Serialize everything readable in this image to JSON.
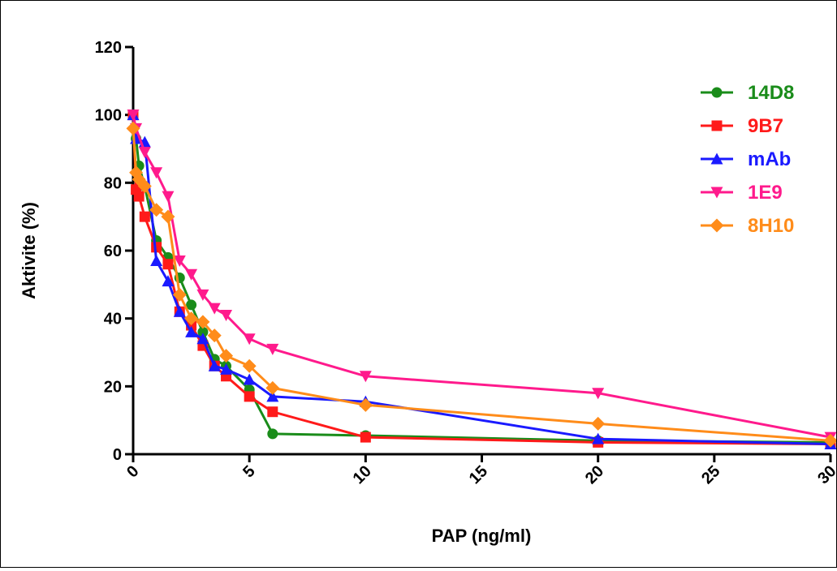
{
  "chart_data": {
    "type": "line",
    "title": "",
    "xlabel": "PAP (ng/ml)",
    "ylabel": "Aktivite (%)",
    "xlim": [
      0,
      30
    ],
    "ylim": [
      0,
      120
    ],
    "xticks": [
      "0",
      "5",
      "10",
      "15",
      "20",
      "25",
      "30"
    ],
    "yticks": [
      "0",
      "20",
      "40",
      "60",
      "80",
      "100",
      "120"
    ],
    "grid": false,
    "legend_position": "top-right",
    "series": [
      {
        "name": "14D8",
        "color": "#1a8c1a",
        "marker": "circle",
        "points": [
          [
            0,
            100
          ],
          [
            0.125,
            93
          ],
          [
            0.25,
            85
          ],
          [
            0.5,
            79
          ],
          [
            1,
            63
          ],
          [
            1.5,
            58
          ],
          [
            2,
            52
          ],
          [
            2.5,
            44
          ],
          [
            3,
            36
          ],
          [
            3.5,
            28
          ],
          [
            4,
            26
          ],
          [
            5,
            19
          ],
          [
            6,
            6
          ],
          [
            10,
            5.5
          ],
          [
            20,
            4
          ],
          [
            30,
            3.5
          ]
        ]
      },
      {
        "name": "9B7",
        "color": "#ff1a1a",
        "marker": "square",
        "points": [
          [
            0,
            100
          ],
          [
            0.125,
            78
          ],
          [
            0.25,
            76
          ],
          [
            0.5,
            70
          ],
          [
            1,
            61
          ],
          [
            1.5,
            56
          ],
          [
            2,
            42
          ],
          [
            2.5,
            38
          ],
          [
            3,
            32
          ],
          [
            3.5,
            26
          ],
          [
            4,
            23
          ],
          [
            5,
            17
          ],
          [
            6,
            12.5
          ],
          [
            10,
            5
          ],
          [
            20,
            3.5
          ],
          [
            30,
            3
          ]
        ]
      },
      {
        "name": "mAb",
        "color": "#1a1aff",
        "marker": "triangle",
        "points": [
          [
            0,
            100
          ],
          [
            0.125,
            93
          ],
          [
            0.5,
            92
          ],
          [
            1,
            57
          ],
          [
            1.5,
            51
          ],
          [
            2,
            42
          ],
          [
            2.5,
            36
          ],
          [
            3,
            34
          ],
          [
            3.5,
            26
          ],
          [
            4,
            25
          ],
          [
            5,
            22
          ],
          [
            6,
            17
          ],
          [
            10,
            15.5
          ],
          [
            20,
            4.5
          ],
          [
            30,
            3
          ]
        ]
      },
      {
        "name": "1E9",
        "color": "#ff1a8c",
        "marker": "triangle-down",
        "points": [
          [
            0,
            100
          ],
          [
            0.125,
            96
          ],
          [
            0.5,
            89
          ],
          [
            1,
            83
          ],
          [
            1.5,
            76
          ],
          [
            2,
            57
          ],
          [
            2.5,
            53
          ],
          [
            3,
            47
          ],
          [
            3.5,
            43
          ],
          [
            4,
            41
          ],
          [
            5,
            34
          ],
          [
            6,
            31
          ],
          [
            10,
            23
          ],
          [
            20,
            18
          ],
          [
            30,
            5
          ]
        ]
      },
      {
        "name": "8H10",
        "color": "#ff8c1a",
        "marker": "diamond",
        "points": [
          [
            0,
            96
          ],
          [
            0.125,
            83
          ],
          [
            0.25,
            81
          ],
          [
            0.5,
            79
          ],
          [
            1,
            72
          ],
          [
            1.5,
            70
          ],
          [
            2,
            47
          ],
          [
            2.5,
            40
          ],
          [
            3,
            39
          ],
          [
            3.5,
            35
          ],
          [
            4,
            29
          ],
          [
            5,
            26
          ],
          [
            6,
            19.5
          ],
          [
            10,
            14.5
          ],
          [
            20,
            9
          ],
          [
            30,
            4
          ]
        ]
      }
    ]
  }
}
